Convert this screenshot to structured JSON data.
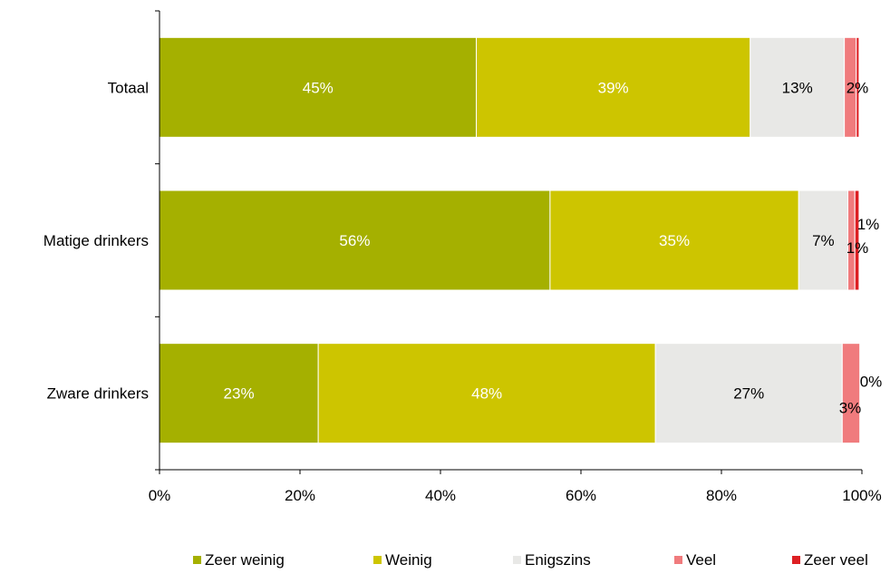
{
  "chart_data": {
    "type": "bar",
    "orientation": "horizontal",
    "stacked": "percent",
    "title": "",
    "xlabel": "",
    "ylabel": "",
    "xlim": [
      0,
      100
    ],
    "x_ticks": [
      "0%",
      "20%",
      "40%",
      "60%",
      "80%",
      "100%"
    ],
    "categories": [
      "Totaal",
      "Matige drinkers",
      "Zware drinkers"
    ],
    "series": [
      {
        "name": "Zeer weinig",
        "color": "#a5b000",
        "label_color": "#ffffff",
        "values": [
          45.1,
          55.6,
          22.6
        ],
        "labels": [
          "45%",
          "56%",
          "23%"
        ]
      },
      {
        "name": "Weinig",
        "color": "#cdc500",
        "label_color": "#ffffff",
        "values": [
          39.0,
          35.4,
          48.0
        ],
        "labels": [
          "39%",
          "35%",
          "48%"
        ]
      },
      {
        "name": "Enigszins",
        "color": "#e8e8e6",
        "label_color": "#000000",
        "values": [
          13.4,
          7.0,
          26.6
        ],
        "labels": [
          "13%",
          "7%",
          "27%"
        ]
      },
      {
        "name": "Veel",
        "color": "#f07b7d",
        "label_color": "#000000",
        "values": [
          1.7,
          1.0,
          2.5
        ],
        "labels": [
          "2%",
          "1%",
          "3%"
        ]
      },
      {
        "name": "Zeer veel",
        "color": "#dd1f23",
        "label_color": "#000000",
        "values": [
          0.4,
          0.6,
          0.0
        ],
        "labels": [
          "",
          "1%",
          "0%"
        ]
      }
    ],
    "grid": false,
    "legend_position": "bottom"
  }
}
